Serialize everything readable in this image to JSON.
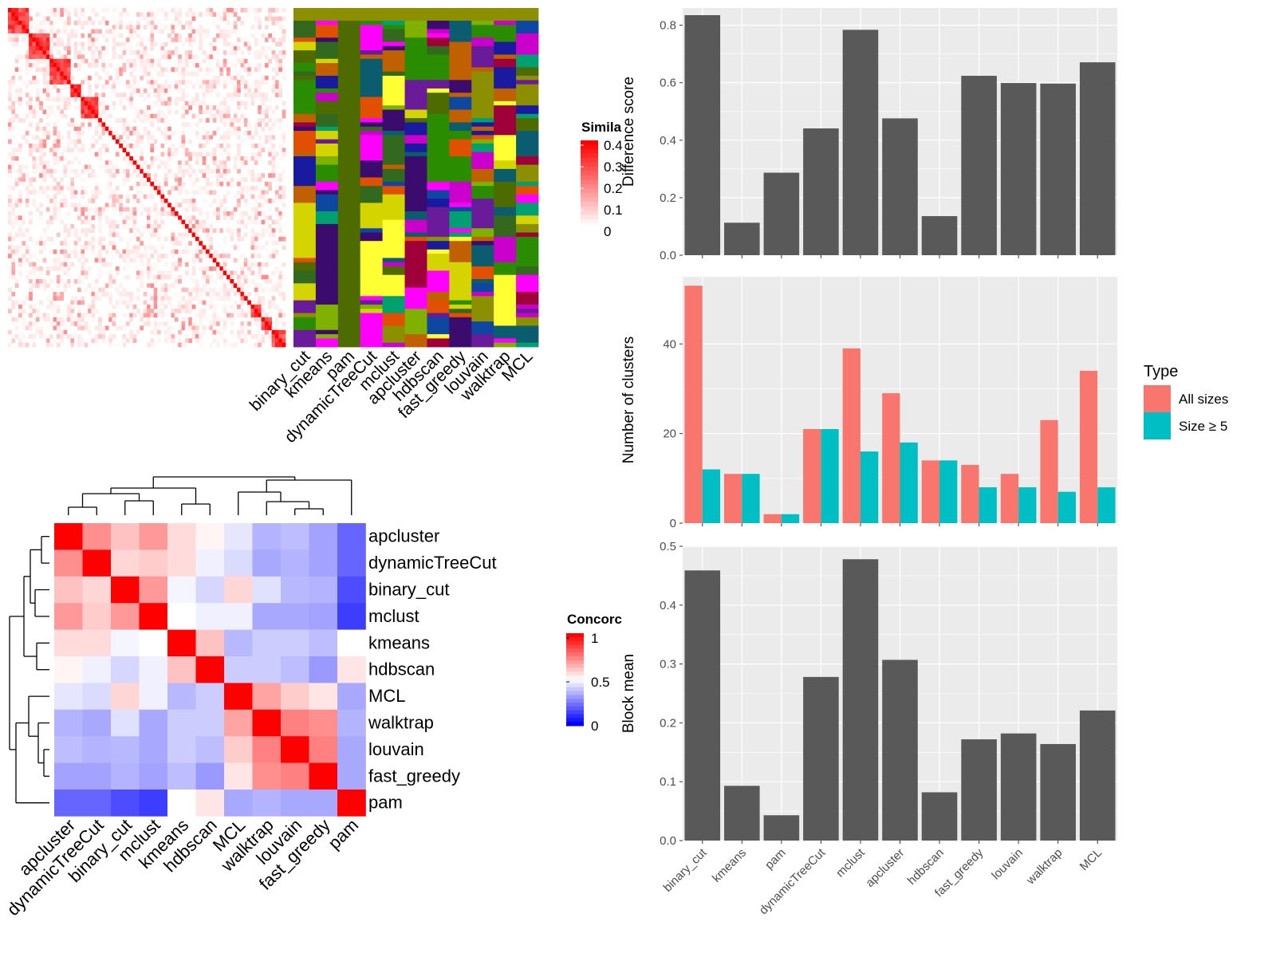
{
  "colors": {
    "panel_bg": "#ebebeb",
    "bar": "#595959",
    "all_sizes": "#f8766d",
    "size_ge5": "#00bfc4",
    "sim_high": "#ff0000",
    "concord_high": "#ff0000",
    "concord_mid": "#ffffff",
    "concord_low": "#0000ff"
  },
  "similarity_panel": {
    "legend_title": "Simila",
    "legend_ticks": [
      "0.4",
      "0.3",
      "0.2",
      "0.1",
      "0"
    ],
    "method_labels": [
      "binary_cut",
      "kmeans",
      "pam",
      "dynamicTreeCut",
      "mclust",
      "apcluster",
      "hdbscan",
      "fast_greedy",
      "louvain",
      "walktrap",
      "MCL"
    ]
  },
  "concordance_panel": {
    "legend_title": "Concorc",
    "legend_ticks": [
      "1",
      "0.5",
      "0"
    ],
    "labels": [
      "apcluster",
      "dynamicTreeCut",
      "binary_cut",
      "mclust",
      "kmeans",
      "hdbscan",
      "MCL",
      "walktrap",
      "louvain",
      "fast_greedy",
      "pam"
    ],
    "matrix": [
      [
        1.0,
        0.72,
        0.62,
        0.7,
        0.57,
        0.52,
        0.45,
        0.35,
        0.37,
        0.32,
        0.2
      ],
      [
        0.72,
        1.0,
        0.58,
        0.6,
        0.57,
        0.47,
        0.43,
        0.33,
        0.35,
        0.32,
        0.2
      ],
      [
        0.62,
        0.58,
        1.0,
        0.7,
        0.48,
        0.42,
        0.58,
        0.44,
        0.36,
        0.35,
        0.15
      ],
      [
        0.7,
        0.6,
        0.7,
        1.0,
        0.5,
        0.47,
        0.47,
        0.33,
        0.33,
        0.32,
        0.12
      ],
      [
        0.57,
        0.57,
        0.48,
        0.5,
        1.0,
        0.62,
        0.36,
        0.4,
        0.4,
        0.37,
        0.5
      ],
      [
        0.52,
        0.47,
        0.42,
        0.47,
        0.62,
        1.0,
        0.4,
        0.4,
        0.37,
        0.3,
        0.55
      ],
      [
        0.45,
        0.43,
        0.58,
        0.47,
        0.36,
        0.4,
        1.0,
        0.68,
        0.6,
        0.55,
        0.33
      ],
      [
        0.35,
        0.33,
        0.44,
        0.33,
        0.4,
        0.4,
        0.68,
        1.0,
        0.75,
        0.72,
        0.35
      ],
      [
        0.37,
        0.35,
        0.36,
        0.33,
        0.4,
        0.37,
        0.6,
        0.75,
        1.0,
        0.75,
        0.33
      ],
      [
        0.32,
        0.32,
        0.35,
        0.32,
        0.37,
        0.3,
        0.55,
        0.72,
        0.75,
        1.0,
        0.33
      ],
      [
        0.2,
        0.2,
        0.15,
        0.12,
        0.5,
        0.55,
        0.33,
        0.35,
        0.33,
        0.33,
        1.0
      ]
    ]
  },
  "chart_data": [
    {
      "type": "bar",
      "categories": [
        "binary_cut",
        "kmeans",
        "pam",
        "dynamicTreeCut",
        "mclust",
        "apcluster",
        "hdbscan",
        "fast_greedy",
        "louvain",
        "walktrap",
        "MCL"
      ],
      "values": [
        0.835,
        0.113,
        0.287,
        0.441,
        0.784,
        0.476,
        0.136,
        0.624,
        0.599,
        0.597,
        0.671
      ],
      "ylabel": "Difference score",
      "ylim": [
        0,
        0.86
      ],
      "yticks": [
        0.0,
        0.2,
        0.4,
        0.6,
        0.8
      ],
      "ytick_labels": [
        "0.0",
        "0.2",
        "0.4",
        "0.6",
        "0.8"
      ],
      "grid": true
    },
    {
      "type": "bar",
      "categories": [
        "binary_cut",
        "kmeans",
        "pam",
        "dynamicTreeCut",
        "mclust",
        "apcluster",
        "hdbscan",
        "fast_greedy",
        "louvain",
        "walktrap",
        "MCL"
      ],
      "series": [
        {
          "name": "All sizes",
          "values": [
            53,
            11,
            2,
            21,
            39,
            29,
            14,
            13,
            11,
            23,
            34
          ]
        },
        {
          "name": "Size ≥ 5",
          "values": [
            12,
            11,
            2,
            21,
            16,
            18,
            14,
            8,
            8,
            7,
            8
          ]
        }
      ],
      "ylabel": "Number of clusters",
      "ylim": [
        0,
        55
      ],
      "yticks": [
        0,
        20,
        40
      ],
      "ytick_labels": [
        "0",
        "20",
        "40"
      ],
      "legend_title": "Type",
      "legend_position": "right",
      "grid": true
    },
    {
      "type": "bar",
      "categories": [
        "binary_cut",
        "kmeans",
        "pam",
        "dynamicTreeCut",
        "mclust",
        "apcluster",
        "hdbscan",
        "fast_greedy",
        "louvain",
        "walktrap",
        "MCL"
      ],
      "values": [
        0.459,
        0.093,
        0.043,
        0.278,
        0.478,
        0.307,
        0.082,
        0.172,
        0.182,
        0.164,
        0.221
      ],
      "ylabel": "Block mean",
      "ylim": [
        0,
        0.5
      ],
      "yticks": [
        0.0,
        0.1,
        0.2,
        0.3,
        0.4,
        0.5
      ],
      "ytick_labels": [
        "0.0",
        "0.1",
        "0.2",
        "0.3",
        "0.4",
        "0.5"
      ],
      "grid": true
    }
  ]
}
